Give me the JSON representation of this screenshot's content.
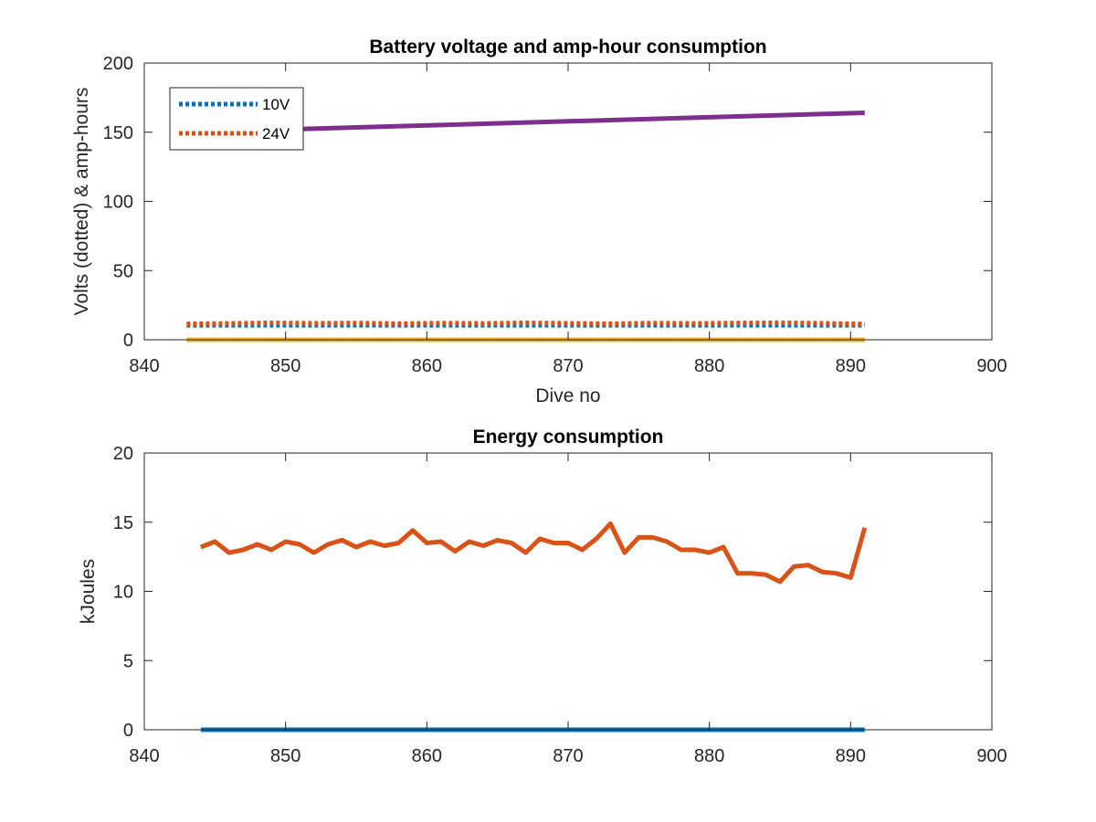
{
  "chart_data": [
    {
      "type": "line",
      "title": "Battery voltage and amp-hour consumption",
      "xlabel": "Dive no",
      "ylabel": "Volts (dotted) & amp-hours",
      "xlim": [
        840,
        900
      ],
      "ylim": [
        0,
        200
      ],
      "xticks": [
        "840",
        "850",
        "860",
        "870",
        "880",
        "890",
        "900"
      ],
      "yticks": [
        "0",
        "50",
        "100",
        "150",
        "200"
      ],
      "grid": false,
      "legend_position": "top-left",
      "series": [
        {
          "name": "10V",
          "style": "dotted",
          "color": "#0072BD",
          "x": [
            843,
            891
          ],
          "y": [
            10.5,
            10.5
          ]
        },
        {
          "name": "24V",
          "style": "dotted",
          "color": "#D95319",
          "x": [
            843,
            846,
            849,
            852,
            855,
            858,
            861,
            864,
            867,
            870,
            873,
            876,
            879,
            882,
            885,
            888,
            891
          ],
          "y": [
            11.5,
            11.8,
            12.2,
            11.9,
            12.1,
            11.7,
            12.0,
            11.8,
            12.2,
            11.9,
            11.6,
            12.0,
            11.8,
            12.1,
            12.3,
            11.9,
            11.4
          ]
        },
        {
          "style": "solid",
          "color": "#7E2F8E",
          "x": [
            850,
            891
          ],
          "y": [
            152,
            164
          ]
        },
        {
          "style": "solid",
          "color": "#EDB120",
          "x": [
            843,
            891
          ],
          "y": [
            0,
            0
          ]
        }
      ]
    },
    {
      "type": "line",
      "title": "Energy consumption",
      "xlabel": "",
      "ylabel": "kJoules",
      "xlim": [
        840,
        900
      ],
      "ylim": [
        0,
        20
      ],
      "xticks": [
        "840",
        "850",
        "860",
        "870",
        "880",
        "890",
        "900"
      ],
      "yticks": [
        "0",
        "5",
        "10",
        "15",
        "20"
      ],
      "grid": false,
      "series": [
        {
          "style": "solid",
          "color": "#D95319",
          "x": [
            844,
            845,
            846,
            847,
            848,
            849,
            850,
            851,
            852,
            853,
            854,
            855,
            856,
            857,
            858,
            859,
            860,
            861,
            862,
            863,
            864,
            865,
            866,
            867,
            868,
            869,
            870,
            871,
            872,
            873,
            874,
            875,
            876,
            877,
            878,
            879,
            880,
            881,
            882,
            883,
            884,
            885,
            886,
            887,
            888,
            889,
            890,
            891
          ],
          "y": [
            13.2,
            13.6,
            12.8,
            13.0,
            13.4,
            13.0,
            13.6,
            13.4,
            12.8,
            13.4,
            13.7,
            13.2,
            13.6,
            13.3,
            13.5,
            14.4,
            13.5,
            13.6,
            12.9,
            13.6,
            13.3,
            13.7,
            13.5,
            12.8,
            13.8,
            13.5,
            13.5,
            13.0,
            13.8,
            14.9,
            12.8,
            13.9,
            13.9,
            13.6,
            13.0,
            13.0,
            12.8,
            13.2,
            11.3,
            11.3,
            11.2,
            10.7,
            11.8,
            11.9,
            11.4,
            11.3,
            11.0,
            14.6
          ]
        },
        {
          "style": "solid",
          "color": "#0072BD",
          "x": [
            844,
            891
          ],
          "y": [
            0,
            0
          ]
        }
      ]
    }
  ]
}
